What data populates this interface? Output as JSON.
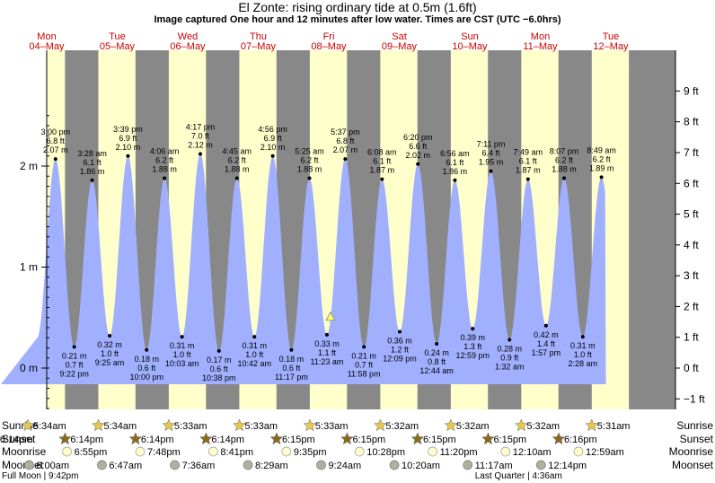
{
  "title": "El Zonte: rising  ordinary tide at 0.5m (1.6ft)",
  "subtitle": "Image captured One hour and 12 minutes after low water. Times are CST (UTC −6.0hrs)",
  "colors": {
    "day": "#ffffcc",
    "night": "#888888",
    "water": "#a0b0ff",
    "day_header": "#cc0000",
    "marker": "#ffff66",
    "sun": "#e6c84a",
    "sunset": "#8a6a20",
    "moon": "#ffffcc",
    "moonset": "#b0b0a0"
  },
  "chart_data": {
    "type": "area",
    "title": "El Zonte: rising  ordinary tide at 0.5m (1.6ft)",
    "xlabel": "",
    "ylabel_left": "m",
    "ylabel_right": "ft",
    "x_range": [
      "04-May 00:00",
      "12-May 12:00"
    ],
    "y_range_m": [
      -0.6,
      2.6
    ],
    "y_ticks_left": [
      "0 m",
      "1 m",
      "2 m"
    ],
    "y_ticks_right": [
      "−1 ft",
      "0 ft",
      "1 ft",
      "2 ft",
      "3 ft",
      "4 ft",
      "5 ft",
      "6 ft",
      "7 ft",
      "8 ft",
      "9 ft"
    ],
    "days": [
      {
        "name": "Mon",
        "date": "04–May"
      },
      {
        "name": "Tue",
        "date": "05–May"
      },
      {
        "name": "Wed",
        "date": "06–May"
      },
      {
        "name": "Thu",
        "date": "07–May"
      },
      {
        "name": "Fri",
        "date": "08–May"
      },
      {
        "name": "Sat",
        "date": "09–May"
      },
      {
        "name": "Sun",
        "date": "10–May"
      },
      {
        "name": "Mon",
        "date": "11–May"
      },
      {
        "name": "Tue",
        "date": "12–May"
      }
    ],
    "tides": [
      {
        "t": "04-May 15:00",
        "type": "high",
        "time": "3:00 pm",
        "ft": "6.8 ft",
        "m": 2.07,
        "m_label": "2.07 m"
      },
      {
        "t": "04-May 21:22",
        "type": "low",
        "time": "9:22 pm",
        "ft": "0.7 ft",
        "m": 0.21,
        "m_label": "0.21 m"
      },
      {
        "t": "05-May 03:28",
        "type": "high",
        "time": "3:28 am",
        "ft": "6.1 ft",
        "m": 1.86,
        "m_label": "1.86 m"
      },
      {
        "t": "05-May 09:25",
        "type": "low",
        "time": "9:25 am",
        "ft": "1.0 ft",
        "m": 0.32,
        "m_label": "0.32 m"
      },
      {
        "t": "05-May 15:39",
        "type": "high",
        "time": "3:39 pm",
        "ft": "6.9 ft",
        "m": 2.1,
        "m_label": "2.10 m"
      },
      {
        "t": "05-May 22:00",
        "type": "low",
        "time": "10:00 pm",
        "ft": "0.6 ft",
        "m": 0.18,
        "m_label": "0.18 m"
      },
      {
        "t": "06-May 04:06",
        "type": "high",
        "time": "4:06 am",
        "ft": "6.2 ft",
        "m": 1.88,
        "m_label": "1.88 m"
      },
      {
        "t": "06-May 10:03",
        "type": "low",
        "time": "10:03 am",
        "ft": "1.0 ft",
        "m": 0.31,
        "m_label": "0.31 m"
      },
      {
        "t": "06-May 16:17",
        "type": "high",
        "time": "4:17 pm",
        "ft": "7.0 ft",
        "m": 2.12,
        "m_label": "2.12 m"
      },
      {
        "t": "06-May 22:38",
        "type": "low",
        "time": "10:38 pm",
        "ft": "0.6 ft",
        "m": 0.17,
        "m_label": "0.17 m"
      },
      {
        "t": "07-May 04:45",
        "type": "high",
        "time": "4:45 am",
        "ft": "6.2 ft",
        "m": 1.88,
        "m_label": "1.88 m"
      },
      {
        "t": "07-May 10:42",
        "type": "low",
        "time": "10:42 am",
        "ft": "1.0 ft",
        "m": 0.31,
        "m_label": "0.31 m"
      },
      {
        "t": "07-May 16:56",
        "type": "high",
        "time": "4:56 pm",
        "ft": "6.9 ft",
        "m": 2.1,
        "m_label": "2.10 m"
      },
      {
        "t": "07-May 23:17",
        "type": "low",
        "time": "11:17 pm",
        "ft": "0.6 ft",
        "m": 0.18,
        "m_label": "0.18 m"
      },
      {
        "t": "08-May 05:25",
        "type": "high",
        "time": "5:25 am",
        "ft": "6.2 ft",
        "m": 1.88,
        "m_label": "1.88 m"
      },
      {
        "t": "08-May 11:23",
        "type": "low",
        "time": "11:23 am",
        "ft": "1.1 ft",
        "m": 0.33,
        "m_label": "0.33 m"
      },
      {
        "t": "08-May 17:37",
        "type": "high",
        "time": "5:37 pm",
        "ft": "6.8 ft",
        "m": 2.07,
        "m_label": "2.07 m"
      },
      {
        "t": "08-May 23:58",
        "type": "low",
        "time": "11:58 pm",
        "ft": "0.7 ft",
        "m": 0.21,
        "m_label": "0.21 m"
      },
      {
        "t": "09-May 06:08",
        "type": "high",
        "time": "6:08 am",
        "ft": "6.1 ft",
        "m": 1.87,
        "m_label": "1.87 m"
      },
      {
        "t": "09-May 12:09",
        "type": "low",
        "time": "12:09 pm",
        "ft": "1.2 ft",
        "m": 0.36,
        "m_label": "0.36 m"
      },
      {
        "t": "09-May 18:20",
        "type": "high",
        "time": "6:20 pm",
        "ft": "6.6 ft",
        "m": 2.02,
        "m_label": "2.02 m"
      },
      {
        "t": "10-May 00:44",
        "type": "low",
        "time": "12:44 am",
        "ft": "0.8 ft",
        "m": 0.24,
        "m_label": "0.24 m"
      },
      {
        "t": "10-May 06:56",
        "type": "high",
        "time": "6:56 am",
        "ft": "6.1 ft",
        "m": 1.86,
        "m_label": "1.86 m"
      },
      {
        "t": "10-May 12:59",
        "type": "low",
        "time": "12:59 pm",
        "ft": "1.3 ft",
        "m": 0.39,
        "m_label": "0.39 m"
      },
      {
        "t": "10-May 19:11",
        "type": "high",
        "time": "7:11 pm",
        "ft": "6.4 ft",
        "m": 1.95,
        "m_label": "1.95 m"
      },
      {
        "t": "11-May 01:32",
        "type": "low",
        "time": "1:32 am",
        "ft": "0.9 ft",
        "m": 0.28,
        "m_label": "0.28 m"
      },
      {
        "t": "11-May 07:49",
        "type": "high",
        "time": "7:49 am",
        "ft": "6.1 ft",
        "m": 1.87,
        "m_label": "1.87 m"
      },
      {
        "t": "11-May 13:57",
        "type": "low",
        "time": "1:57 pm",
        "ft": "1.4 ft",
        "m": 0.42,
        "m_label": "0.42 m"
      },
      {
        "t": "11-May 20:07",
        "type": "high",
        "time": "8:07 pm",
        "ft": "6.2 ft",
        "m": 1.88,
        "m_label": "1.88 m"
      },
      {
        "t": "12-May 02:28",
        "type": "low",
        "time": "2:28 am",
        "ft": "1.0 ft",
        "m": 0.31,
        "m_label": "0.31 m"
      },
      {
        "t": "12-May 08:49",
        "type": "high",
        "time": "8:49 am",
        "ft": "6.2 ft",
        "m": 1.89,
        "m_label": "1.89 m"
      }
    ],
    "current": {
      "t": "08-May 12:35",
      "m": 0.5
    },
    "rows": {
      "sunrise_label": "Sunrise",
      "sunset_label": "Sunset",
      "moonrise_label": "Moonrise",
      "moonset_label": "Moonset",
      "sunrise": [
        {
          "t": "04-May 05:34",
          "label": "5:34am"
        },
        {
          "t": "05-May 05:34",
          "label": "5:34am"
        },
        {
          "t": "06-May 05:33",
          "label": "5:33am"
        },
        {
          "t": "07-May 05:33",
          "label": "5:33am"
        },
        {
          "t": "08-May 05:33",
          "label": "5:33am"
        },
        {
          "t": "09-May 05:32",
          "label": "5:32am"
        },
        {
          "t": "10-May 05:32",
          "label": "5:32am"
        },
        {
          "t": "11-May 05:32",
          "label": "5:32am"
        },
        {
          "t": "12-May 05:31",
          "label": "5:31am"
        }
      ],
      "sunset": [
        {
          "t": "03-May 18:14",
          "label": "6:14pm"
        },
        {
          "t": "04-May 18:14",
          "label": "6:14pm"
        },
        {
          "t": "05-May 18:14",
          "label": "6:14pm"
        },
        {
          "t": "06-May 18:14",
          "label": "6:14pm"
        },
        {
          "t": "07-May 18:15",
          "label": "6:15pm"
        },
        {
          "t": "08-May 18:15",
          "label": "6:15pm"
        },
        {
          "t": "09-May 18:15",
          "label": "6:15pm"
        },
        {
          "t": "10-May 18:15",
          "label": "6:15pm"
        },
        {
          "t": "11-May 18:16",
          "label": "6:16pm"
        }
      ],
      "moonrise": [
        {
          "t": "04-May 18:55",
          "label": "6:55pm"
        },
        {
          "t": "05-May 19:48",
          "label": "7:48pm"
        },
        {
          "t": "06-May 20:41",
          "label": "8:41pm"
        },
        {
          "t": "07-May 21:35",
          "label": "9:35pm"
        },
        {
          "t": "08-May 22:28",
          "label": "10:28pm"
        },
        {
          "t": "09-May 23:20",
          "label": "11:20pm"
        },
        {
          "t": "11-May 00:10",
          "label": "12:10am"
        },
        {
          "t": "12-May 00:59",
          "label": "12:59am"
        }
      ],
      "moonset": [
        {
          "t": "04-May 06:00",
          "label": "6:00am"
        },
        {
          "t": "05-May 06:47",
          "label": "6:47am"
        },
        {
          "t": "06-May 07:36",
          "label": "7:36am"
        },
        {
          "t": "07-May 08:29",
          "label": "8:29am"
        },
        {
          "t": "08-May 09:24",
          "label": "9:24am"
        },
        {
          "t": "09-May 10:20",
          "label": "10:20am"
        },
        {
          "t": "10-May 11:17",
          "label": "11:17am"
        },
        {
          "t": "11-May 12:14",
          "label": "12:14pm"
        }
      ],
      "phases": [
        {
          "t": "03-May 21:42",
          "label": "Full Moon | 9:42pm",
          "anchor": "start"
        },
        {
          "t": "11-May 04:36",
          "label": "Last Quarter | 4:36am",
          "anchor": "end"
        }
      ]
    }
  }
}
